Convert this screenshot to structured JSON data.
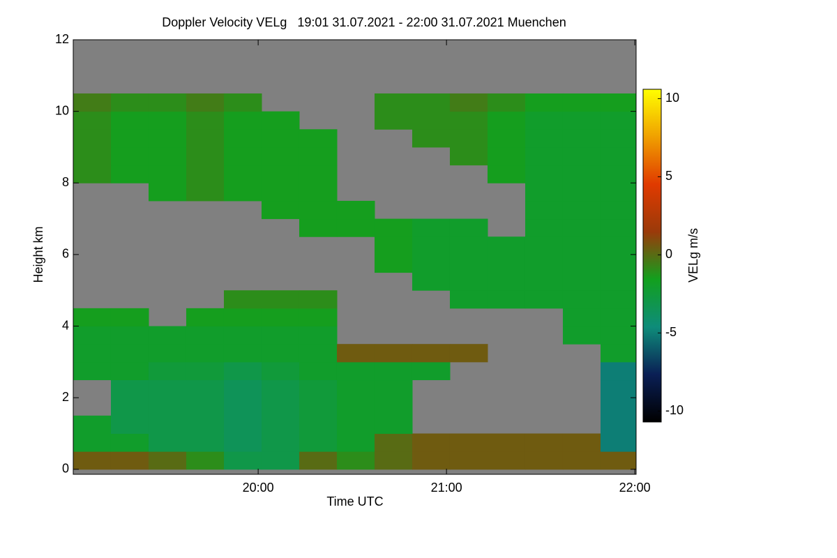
{
  "chart_data": {
    "type": "heatmap",
    "title": "Doppler Velocity VELg   19:01 31.07.2021 - 22:00 31.07.2021 Muenchen",
    "x_label": "Time UTC",
    "y_label": "Height km",
    "x_bins": [
      19.018,
      19.218,
      19.418,
      19.618,
      19.818,
      20.018,
      20.218,
      20.418,
      20.618,
      20.818,
      21.018,
      21.218,
      21.418,
      21.618,
      21.818,
      22.007
    ],
    "y_bins": [
      0,
      0.5,
      1,
      1.5,
      2,
      2.5,
      3,
      3.5,
      4,
      4.5,
      5,
      5.5,
      6,
      6.5,
      7,
      7.5,
      8,
      8.5,
      9,
      9.5,
      10,
      10.5,
      11,
      11.5,
      12
    ],
    "values": [
      [
        0.5,
        0.5,
        0,
        -1,
        -3,
        -3,
        0,
        -1,
        0,
        0.5,
        0.5,
        0.5,
        0.5,
        0.5,
        0.5
      ],
      [
        -2,
        -2,
        -3,
        -3,
        -3.5,
        -3,
        -2.5,
        -2,
        0,
        0.5,
        0.5,
        0.5,
        0.5,
        0.5,
        -5
      ],
      [
        -2,
        -3,
        -3,
        -3,
        -3.5,
        -3,
        -2.5,
        -2,
        -2,
        null,
        null,
        null,
        null,
        null,
        -5
      ],
      [
        null,
        -3,
        -3,
        -3,
        -3.5,
        -3,
        -2.5,
        -2,
        -2,
        null,
        null,
        null,
        null,
        null,
        -5
      ],
      [
        null,
        -3,
        -3,
        -3,
        -3.5,
        -3,
        -2.5,
        -2,
        -2,
        null,
        null,
        null,
        null,
        null,
        -5
      ],
      [
        -2,
        -2,
        -2.5,
        -2.5,
        -3,
        -2.5,
        -2,
        -2,
        -2,
        -2,
        null,
        null,
        null,
        null,
        -5
      ],
      [
        -2,
        -2,
        -2,
        -2,
        -2,
        -2,
        -2,
        0.5,
        0.5,
        0.5,
        0.5,
        null,
        null,
        null,
        -2
      ],
      [
        -2,
        -2,
        -2,
        -2,
        -2,
        -2,
        -2,
        null,
        null,
        null,
        null,
        null,
        null,
        -2,
        -2
      ],
      [
        -1.5,
        -1.5,
        null,
        -1.5,
        -1.5,
        -1.5,
        -1.5,
        null,
        null,
        null,
        null,
        null,
        null,
        -2,
        -2
      ],
      [
        null,
        null,
        null,
        null,
        -1,
        -1,
        -1,
        null,
        null,
        null,
        -2,
        -2,
        -2,
        -2,
        -2
      ],
      [
        null,
        null,
        null,
        null,
        null,
        null,
        null,
        null,
        null,
        -2,
        -2,
        -2,
        -2,
        -2,
        -2
      ],
      [
        null,
        null,
        null,
        null,
        null,
        null,
        null,
        null,
        -1.5,
        -2,
        -2,
        -2,
        -2,
        -2,
        -2
      ],
      [
        null,
        null,
        null,
        null,
        null,
        null,
        null,
        null,
        -1.5,
        -2,
        -2,
        -2,
        -2,
        -2,
        -2
      ],
      [
        null,
        null,
        null,
        null,
        null,
        null,
        -1.5,
        -1.5,
        -1.5,
        -2,
        -2,
        null,
        -2,
        -2,
        -2
      ],
      [
        null,
        null,
        null,
        null,
        null,
        -1.5,
        -1.5,
        -1.5,
        null,
        null,
        null,
        null,
        -2,
        -2,
        -2
      ],
      [
        null,
        null,
        -1.5,
        -1,
        -1.5,
        -1.5,
        -1.5,
        null,
        null,
        null,
        null,
        null,
        -2,
        -2,
        -2
      ],
      [
        -1,
        -1.5,
        -1.5,
        -1,
        -1.5,
        -1.5,
        -1.5,
        null,
        null,
        null,
        null,
        -1.5,
        -2,
        -2,
        -2
      ],
      [
        -1,
        -1.5,
        -1.5,
        -1,
        -1.5,
        -1.5,
        -1.5,
        null,
        null,
        null,
        -1,
        -1.5,
        -2,
        -2,
        -2
      ],
      [
        -1,
        -1.5,
        -1.5,
        -1,
        -1.5,
        -1.5,
        -1.5,
        null,
        null,
        -1,
        -1,
        -1.5,
        -2,
        -2,
        -2
      ],
      [
        -1,
        -1.5,
        -1.5,
        -1,
        -1.5,
        -1.5,
        null,
        null,
        -1,
        -1,
        -1,
        -1.5,
        -2,
        -2,
        -2
      ],
      [
        -0.5,
        -1,
        -1,
        -0.5,
        -1,
        null,
        null,
        null,
        -1,
        -1,
        -0.5,
        -1,
        -1.5,
        -1.5,
        -1.5
      ],
      [
        null,
        null,
        null,
        null,
        null,
        null,
        null,
        null,
        null,
        null,
        null,
        null,
        null,
        null,
        null
      ],
      [
        null,
        null,
        null,
        null,
        null,
        null,
        null,
        null,
        null,
        null,
        null,
        null,
        null,
        null,
        null
      ],
      [
        null,
        null,
        null,
        null,
        null,
        null,
        null,
        null,
        null,
        null,
        null,
        null,
        null,
        null,
        null
      ]
    ],
    "xlim": [
      19.018,
      22.007
    ],
    "ylim": [
      -0.14,
      12
    ],
    "xticks": [
      {
        "value": 20,
        "label": "20:00"
      },
      {
        "value": 21,
        "label": "21:00"
      },
      {
        "value": 22,
        "label": "22:00"
      }
    ],
    "yticks": [
      0,
      2,
      4,
      6,
      8,
      10,
      12
    ],
    "background": "#808080",
    "colorbar": {
      "label": "VELg m/s",
      "clim": [
        -10.7,
        10.6
      ],
      "ticks": [
        -10,
        -5,
        0,
        5,
        10
      ],
      "colors": [
        "#000000",
        "#0a1f55",
        "#0e8c7a",
        "#12a01e",
        "#9a3a0a",
        "#e03a00",
        "#f0a000",
        "#ffff00"
      ]
    }
  }
}
